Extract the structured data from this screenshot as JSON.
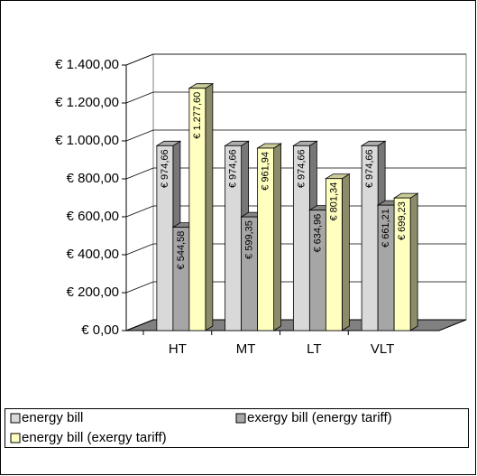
{
  "chart_data": {
    "type": "bar3d",
    "categories": [
      "HT",
      "MT",
      "LT",
      "VLT"
    ],
    "series": [
      {
        "name": "energy bill",
        "color": "#d9d9d9",
        "values": [
          974.66,
          974.66,
          974.66,
          974.66
        ],
        "value_labels": [
          "€ 974,66",
          "€ 974,66",
          "€ 974,66",
          "€ 974,66"
        ]
      },
      {
        "name": "exergy bill (energy tariff)",
        "color": "#a6a6a6",
        "values": [
          544.58,
          599.35,
          634.96,
          661.21
        ],
        "value_labels": [
          "€ 544,58",
          "€ 599,35",
          "€ 634,96",
          "€ 661,21"
        ]
      },
      {
        "name": "energy bill (exergy tariff)",
        "color": "#ffffc0",
        "values": [
          1277.6,
          961.94,
          801.34,
          699.23
        ],
        "value_labels": [
          "€ 1.277,60",
          "€ 961,94",
          "€ 801,34",
          "€ 699,23"
        ]
      }
    ],
    "ylim": [
      0,
      1400
    ],
    "yticks": [
      {
        "value": 0,
        "label": "€ 0,00"
      },
      {
        "value": 200,
        "label": "€ 200,00"
      },
      {
        "value": 400,
        "label": "€ 400,00"
      },
      {
        "value": 600,
        "label": "€ 600,00"
      },
      {
        "value": 800,
        "label": "€ 800,00"
      },
      {
        "value": 1000,
        "label": "€ 1.000,00"
      },
      {
        "value": 1200,
        "label": "€ 1.200,00"
      },
      {
        "value": 1400,
        "label": "€ 1.400,00"
      }
    ],
    "grid": true,
    "legend": "bottom"
  }
}
